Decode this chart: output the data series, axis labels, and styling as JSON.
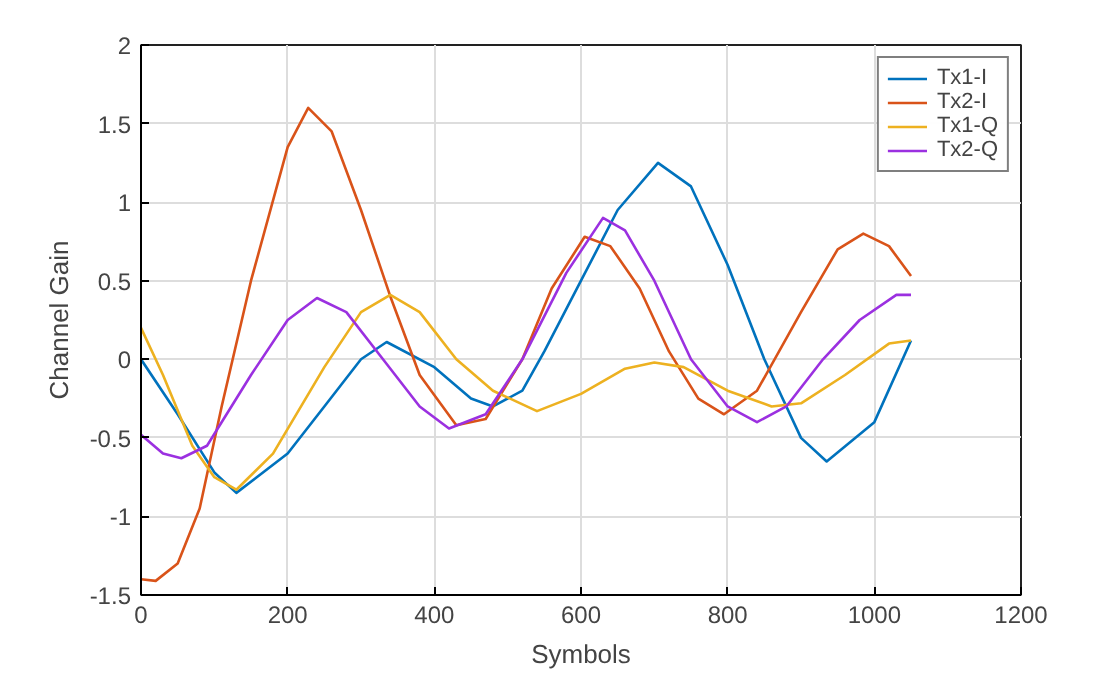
{
  "chart_data": {
    "type": "line",
    "xlabel": "Symbols",
    "ylabel": "Channel Gain",
    "xlim": [
      0,
      1200
    ],
    "ylim": [
      -1.5,
      2
    ],
    "xticks": [
      0,
      200,
      400,
      600,
      800,
      1000,
      1200
    ],
    "yticks": [
      -1.5,
      -1,
      -0.5,
      0,
      0.5,
      1,
      1.5,
      2
    ],
    "grid": true,
    "legend": "top right",
    "line_style": "solid",
    "marker": "none",
    "series": [
      {
        "name": "Tx1-I",
        "color": "#0072bd",
        "x": [
          0,
          50,
          100,
          130,
          200,
          250,
          300,
          335,
          400,
          450,
          480,
          520,
          550,
          600,
          650,
          705,
          750,
          800,
          850,
          900,
          935,
          1000,
          1050
        ],
        "values": [
          0,
          -0.35,
          -0.72,
          -0.85,
          -0.6,
          -0.3,
          0.0,
          0.11,
          -0.05,
          -0.25,
          -0.3,
          -0.2,
          0.05,
          0.5,
          0.95,
          1.25,
          1.1,
          0.6,
          0.0,
          -0.5,
          -0.65,
          -0.4,
          0.12
        ]
      },
      {
        "name": "Tx2-I",
        "color": "#d95319",
        "x": [
          0,
          20,
          50,
          80,
          110,
          150,
          200,
          228,
          260,
          300,
          340,
          380,
          430,
          470,
          520,
          560,
          605,
          640,
          680,
          720,
          760,
          795,
          840,
          900,
          950,
          985,
          1020,
          1050
        ],
        "values": [
          -1.4,
          -1.41,
          -1.3,
          -0.95,
          -0.3,
          0.5,
          1.35,
          1.6,
          1.45,
          0.95,
          0.4,
          -0.1,
          -0.42,
          -0.38,
          0.0,
          0.45,
          0.78,
          0.72,
          0.45,
          0.05,
          -0.25,
          -0.35,
          -0.2,
          0.3,
          0.7,
          0.8,
          0.72,
          0.53
        ]
      },
      {
        "name": "Tx1-Q",
        "color": "#edb120",
        "x": [
          0,
          30,
          70,
          100,
          130,
          180,
          250,
          300,
          340,
          380,
          430,
          480,
          540,
          600,
          660,
          700,
          740,
          800,
          860,
          900,
          960,
          1020,
          1050
        ],
        "values": [
          0.2,
          -0.1,
          -0.55,
          -0.75,
          -0.83,
          -0.6,
          -0.05,
          0.3,
          0.41,
          0.3,
          0.0,
          -0.2,
          -0.33,
          -0.22,
          -0.06,
          -0.02,
          -0.05,
          -0.2,
          -0.3,
          -0.28,
          -0.1,
          0.1,
          0.12
        ]
      },
      {
        "name": "Tx2-Q",
        "color": "#9b30e0",
        "x": [
          0,
          30,
          55,
          90,
          150,
          200,
          240,
          280,
          330,
          380,
          420,
          470,
          520,
          580,
          630,
          660,
          700,
          750,
          800,
          840,
          880,
          930,
          980,
          1030,
          1050
        ],
        "values": [
          -0.48,
          -0.6,
          -0.63,
          -0.55,
          -0.1,
          0.25,
          0.39,
          0.3,
          0.0,
          -0.3,
          -0.44,
          -0.35,
          0.0,
          0.55,
          0.9,
          0.82,
          0.5,
          0.0,
          -0.3,
          -0.4,
          -0.3,
          0.0,
          0.25,
          0.41,
          0.41
        ]
      }
    ]
  }
}
